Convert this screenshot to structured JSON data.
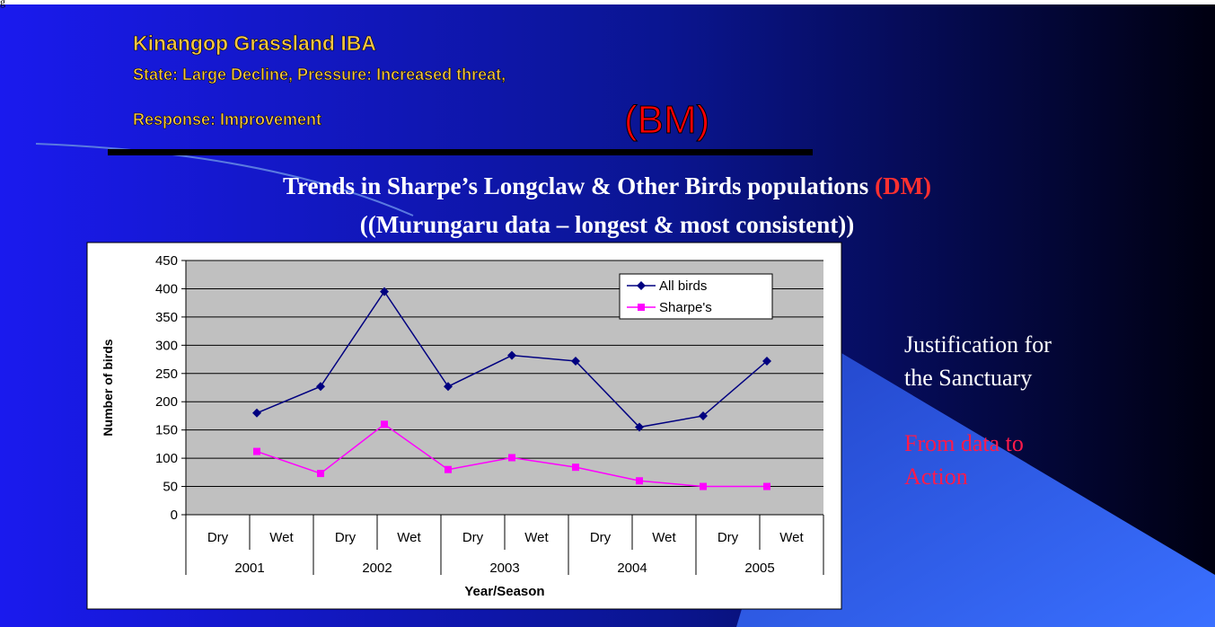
{
  "header": {
    "title": "Kinangop Grassland IBA",
    "line1": "State: Large Decline,  Pressure: Increased threat,",
    "line2": "Response: Improvement",
    "tag": "(BM)"
  },
  "heading": {
    "line1": "Trends in Sharpe’s Longclaw & Other Birds populations",
    "tag": "(DM)",
    "line2": "((Murungaru data – longest & most consistent))"
  },
  "side": {
    "note": [
      "Justification for",
      "the Sanctuary"
    ],
    "action": [
      "From data to",
      "Action"
    ]
  },
  "corner": "g",
  "chart_data": {
    "type": "line",
    "y_label": "Number of birds",
    "x_label": "Year/Season",
    "categories": [
      "Dry",
      "Wet",
      "Dry",
      "Wet",
      "Dry",
      "Wet",
      "Dry",
      "Wet",
      "Dry",
      "Wet"
    ],
    "category_groups": [
      "2001",
      "2002",
      "2003",
      "2004",
      "2005"
    ],
    "series": [
      {
        "name": "All birds",
        "color": "#000080",
        "marker": "diamond",
        "values": [
          null,
          180,
          227,
          395,
          227,
          282,
          272,
          155,
          175,
          272
        ]
      },
      {
        "name": "Sharpe's",
        "color": "#ff00ff",
        "marker": "square",
        "values": [
          null,
          112,
          73,
          160,
          80,
          101,
          84,
          60,
          50,
          50
        ]
      }
    ],
    "ylim": [
      0,
      450
    ],
    "yticks": [
      0,
      50,
      100,
      150,
      200,
      250,
      300,
      350,
      400,
      450
    ],
    "grid": true,
    "plot_background": "#c0c0c0",
    "legend": "top-right"
  }
}
